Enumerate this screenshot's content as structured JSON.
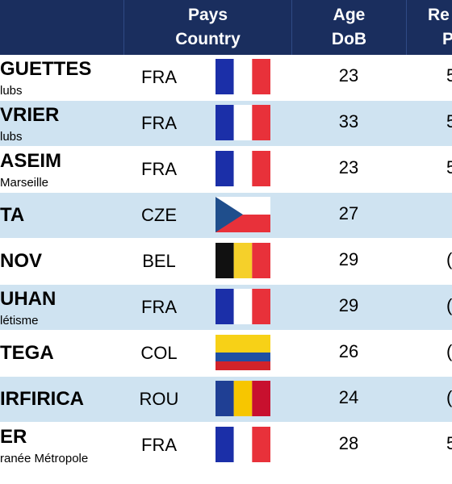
{
  "header": {
    "col_country_fr": "Pays",
    "col_country_en": "Country",
    "col_age_fr": "Age",
    "col_age_en": "DoB",
    "col_cut_fr": "Re",
    "col_cut_en": "P"
  },
  "rows": [
    {
      "name": "GUETTES",
      "club": "lubs",
      "country": "FRA",
      "age": "23",
      "cut": "5",
      "flag": "fra"
    },
    {
      "name": "VRIER",
      "club": "lubs",
      "country": "FRA",
      "age": "33",
      "cut": "5",
      "flag": "fra"
    },
    {
      "name": "ASEIM",
      "club": "Marseille",
      "country": "FRA",
      "age": "23",
      "cut": "5",
      "flag": "fra"
    },
    {
      "name": "TA",
      "club": "",
      "country": "CZE",
      "age": "27",
      "cut": "",
      "flag": "cze"
    },
    {
      "name": "NOV",
      "club": "",
      "country": "BEL",
      "age": "29",
      "cut": "(",
      "flag": "bel"
    },
    {
      "name": "UHAN",
      "club": "létisme",
      "country": "FRA",
      "age": "29",
      "cut": "(",
      "flag": "fra"
    },
    {
      "name": "TEGA",
      "club": "",
      "country": "COL",
      "age": "26",
      "cut": "(",
      "flag": "col"
    },
    {
      "name": "IRFIRICA",
      "club": "",
      "country": "ROU",
      "age": "24",
      "cut": "(",
      "flag": "rou"
    },
    {
      "name": "ER",
      "club": "ranée Métropole",
      "country": "FRA",
      "age": "28",
      "cut": "5",
      "flag": "fra"
    }
  ],
  "colors": {
    "header_bg": "#1a2e5e",
    "row_alt_bg": "#cfe3f1",
    "flag_blue": "#1b2fa8",
    "flag_red": "#e8313a",
    "cze_blue": "#1f4e8c",
    "bel_black": "#111111",
    "bel_yellow": "#f5d02a",
    "col_yellow": "#f7d117",
    "col_blue": "#1f4fa3",
    "col_red": "#d2232a",
    "rou_blue": "#1f3f94",
    "rou_yellow": "#f7c600",
    "rou_red": "#c8102e"
  }
}
